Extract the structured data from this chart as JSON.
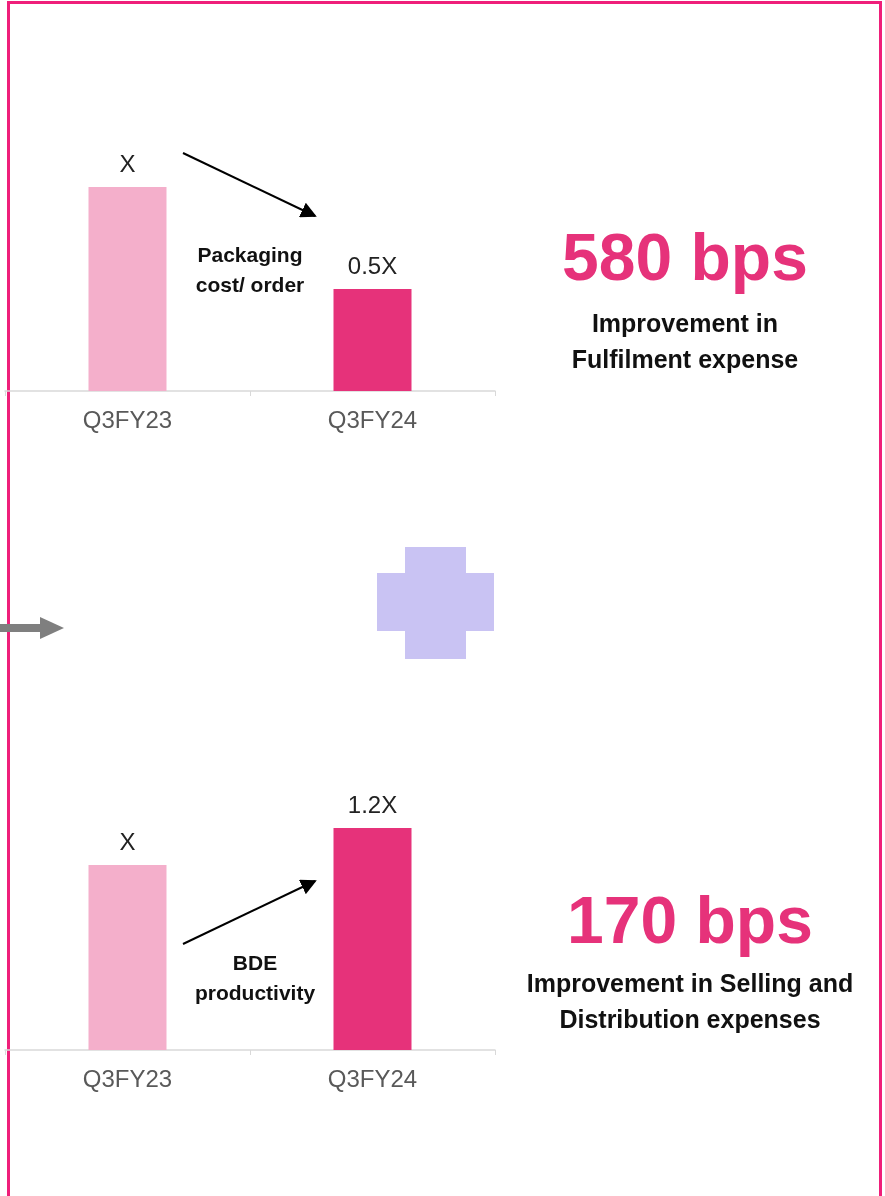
{
  "chart_data": [
    {
      "type": "bar",
      "categories": [
        "Q3FY23",
        "Q3FY24"
      ],
      "values": [
        1,
        0.5
      ],
      "colors": [
        "#f4afcb",
        "#e6327a"
      ],
      "value_labels": [
        "X",
        "0.5X"
      ],
      "tick_labels": "x",
      "annotations": [
        "Packaging cost/ order",
        "580 bps",
        "Improvement in Fulfilment expense"
      ]
    },
    {
      "type": "bar",
      "categories": [
        "Q3FY23",
        "Q3FY24"
      ],
      "values": [
        1,
        1.2
      ],
      "colors": [
        "#f4afcb",
        "#e6327a"
      ],
      "value_labels": [
        "X",
        "1.2X"
      ],
      "tick_labels": "x",
      "annotations": [
        "BDE productivity",
        "170 bps",
        "Improvement in Selling and Distribution expenses"
      ]
    }
  ]
}
